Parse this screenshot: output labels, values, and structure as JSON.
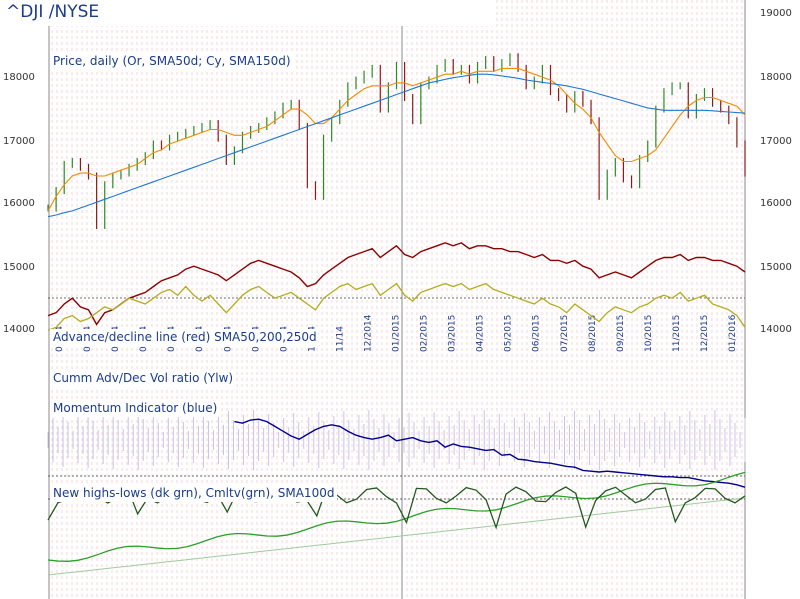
{
  "header": {
    "ticker": "^DJI /NYSE"
  },
  "panels": {
    "price": "Price, daily (Or, SMA50d; Cy, SMA150d)",
    "adline": "Advance/decline line (red) SMA50,200,250d",
    "cumm": "Cumm Adv/Dec Vol ratio (Ylw)",
    "momentum": "Momentum Indicator (blue)",
    "highs": "New highs-lows (dk grn), Cmltv(grn), SMA100d"
  },
  "chart_data": {
    "type": "line",
    "title": "^DJI /NYSE",
    "ylim": [
      13500,
      19000
    ],
    "y_ticks_right": [
      19000,
      18000,
      17000,
      16000,
      15000,
      14000
    ],
    "y_ticks_left": [
      18000,
      17000,
      16000,
      15000,
      14000
    ],
    "x_tick_labels": [
      "01/14",
      "02/14",
      "03/14",
      "04/14",
      "05/14",
      "06/14",
      "07/14",
      "08/14",
      "09/14",
      "10/14",
      "11/14",
      "12/2014",
      "01/2015",
      "02/2015",
      "03/2015",
      "04/2015",
      "05/2015",
      "06/2015",
      "07/2015",
      "08/2015",
      "09/2015",
      "10/2015",
      "11/2015",
      "12/2015",
      "01/2016"
    ],
    "series": [
      {
        "name": "Price",
        "color": "#2a8a2a",
        "values": [
          15700,
          16000,
          16450,
          16500,
          16400,
          16250,
          15400,
          16100,
          16250,
          16300,
          16400,
          16500,
          16600,
          16800,
          16750,
          16900,
          16950,
          17000,
          17050,
          17100,
          17150,
          16900,
          16500,
          16700,
          16950,
          17050,
          17100,
          17200,
          17300,
          17450,
          17500,
          17100,
          16100,
          15900,
          16900,
          17200,
          17500,
          17800,
          17900,
          18000,
          18100,
          17400,
          17800,
          18150,
          17600,
          17200,
          17800,
          17900,
          18100,
          18200,
          18050,
          18100,
          17900,
          18150,
          18250,
          18100,
          18200,
          18300,
          18100,
          17800,
          17900,
          18100,
          17700,
          17600,
          17400,
          17650,
          17500,
          17200,
          15900,
          16300,
          16500,
          16200,
          16100,
          16550,
          16800,
          17400,
          17700,
          17800,
          17800,
          17300,
          17600,
          17700,
          17500,
          17400,
          17200,
          16800,
          16300
        ]
      },
      {
        "name": "SMA50d",
        "color": "#f08c00",
        "values": [
          15650,
          15900,
          16100,
          16250,
          16300,
          16300,
          16250,
          16250,
          16300,
          16350,
          16400,
          16450,
          16550,
          16650,
          16700,
          16800,
          16850,
          16900,
          16950,
          17000,
          17050,
          17050,
          17000,
          16950,
          16950,
          17000,
          17050,
          17100,
          17200,
          17300,
          17400,
          17400,
          17300,
          17150,
          17150,
          17250,
          17400,
          17550,
          17650,
          17750,
          17800,
          17800,
          17800,
          17850,
          17850,
          17800,
          17850,
          17900,
          17950,
          18000,
          18000,
          18050,
          18000,
          18050,
          18050,
          18050,
          18100,
          18100,
          18100,
          18050,
          18000,
          17950,
          17900,
          17800,
          17650,
          17500,
          17400,
          17250,
          17000,
          16800,
          16600,
          16500,
          16500,
          16550,
          16600,
          16700,
          16900,
          17100,
          17300,
          17450,
          17550,
          17600,
          17600,
          17550,
          17500,
          17450,
          17300
        ]
      },
      {
        "name": "SMA150d",
        "color": "#1e78d6",
        "values": [
          15550,
          15580,
          15620,
          15650,
          15700,
          15750,
          15800,
          15850,
          15900,
          15950,
          16000,
          16050,
          16100,
          16150,
          16200,
          16250,
          16300,
          16350,
          16400,
          16450,
          16500,
          16550,
          16600,
          16650,
          16700,
          16750,
          16800,
          16850,
          16900,
          16950,
          17000,
          17050,
          17100,
          17150,
          17200,
          17250,
          17300,
          17350,
          17400,
          17450,
          17500,
          17550,
          17600,
          17650,
          17700,
          17750,
          17800,
          17850,
          17880,
          17910,
          17940,
          17960,
          17980,
          18000,
          18000,
          17990,
          17970,
          17950,
          17930,
          17900,
          17880,
          17860,
          17840,
          17820,
          17800,
          17770,
          17740,
          17700,
          17660,
          17620,
          17580,
          17540,
          17500,
          17460,
          17420,
          17400,
          17380,
          17380,
          17380,
          17380,
          17380,
          17380,
          17370,
          17360,
          17350,
          17340,
          17330
        ]
      },
      {
        "name": "A/D line",
        "color": "#8b0000",
        "values": [
          13850,
          13900,
          14050,
          14150,
          14000,
          13950,
          13700,
          13900,
          13950,
          14050,
          14150,
          14200,
          14250,
          14350,
          14450,
          14500,
          14550,
          14650,
          14700,
          14650,
          14600,
          14550,
          14450,
          14550,
          14650,
          14750,
          14800,
          14750,
          14700,
          14650,
          14600,
          14500,
          14350,
          14400,
          14550,
          14650,
          14750,
          14850,
          14900,
          14950,
          15000,
          14850,
          14950,
          15050,
          14900,
          14850,
          14950,
          15000,
          15050,
          15100,
          15050,
          15100,
          15000,
          15050,
          15050,
          15000,
          15000,
          14950,
          14950,
          14900,
          14850,
          14900,
          14800,
          14800,
          14750,
          14800,
          14700,
          14650,
          14500,
          14550,
          14600,
          14550,
          14500,
          14600,
          14700,
          14800,
          14850,
          14850,
          14900,
          14800,
          14850,
          14850,
          14800,
          14800,
          14750,
          14700,
          14600
        ]
      },
      {
        "name": "Cumm Adv/Dec Vol",
        "color": "#b4ac1e",
        "values": [
          13600,
          13650,
          13800,
          13850,
          13750,
          13800,
          13900,
          14000,
          13950,
          14050,
          14150,
          14100,
          14050,
          14150,
          14250,
          14300,
          14200,
          14350,
          14200,
          14100,
          14200,
          14050,
          13900,
          14050,
          14200,
          14300,
          14350,
          14250,
          14150,
          14200,
          14250,
          14150,
          14050,
          13950,
          14150,
          14250,
          14350,
          14400,
          14300,
          14350,
          14400,
          14200,
          14300,
          14400,
          14200,
          14100,
          14250,
          14300,
          14350,
          14400,
          14350,
          14400,
          14300,
          14350,
          14400,
          14300,
          14250,
          14200,
          14150,
          14100,
          14050,
          14150,
          14050,
          14000,
          13900,
          14050,
          13950,
          13850,
          13750,
          13900,
          14000,
          13950,
          13900,
          14000,
          14050,
          14150,
          14200,
          14150,
          14250,
          14100,
          14150,
          14200,
          14050,
          14000,
          13950,
          13850,
          13650
        ]
      },
      {
        "name": "Momentum",
        "color": "#00008b",
        "values": [
          null,
          null,
          null,
          null,
          null,
          null,
          null,
          null,
          null,
          null,
          null,
          null,
          null,
          null,
          null,
          null,
          null,
          null,
          null,
          null,
          null,
          null,
          null,
          13620,
          13600,
          13640,
          13650,
          13620,
          13560,
          13500,
          13440,
          13400,
          13460,
          13520,
          13560,
          13580,
          13560,
          13500,
          13450,
          13420,
          13400,
          13420,
          13450,
          13380,
          13400,
          13420,
          13380,
          13360,
          13380,
          13300,
          13340,
          13310,
          13300,
          13280,
          13260,
          13270,
          13200,
          13210,
          13150,
          13140,
          13120,
          13110,
          13100,
          13080,
          13060,
          13050,
          13010,
          13000,
          12990,
          13000,
          12990,
          12980,
          12970,
          12960,
          12950,
          12940,
          12930,
          12930,
          12920,
          12920,
          12900,
          12880,
          12870,
          12860,
          12850,
          12830,
          12800
        ]
      }
    ]
  }
}
